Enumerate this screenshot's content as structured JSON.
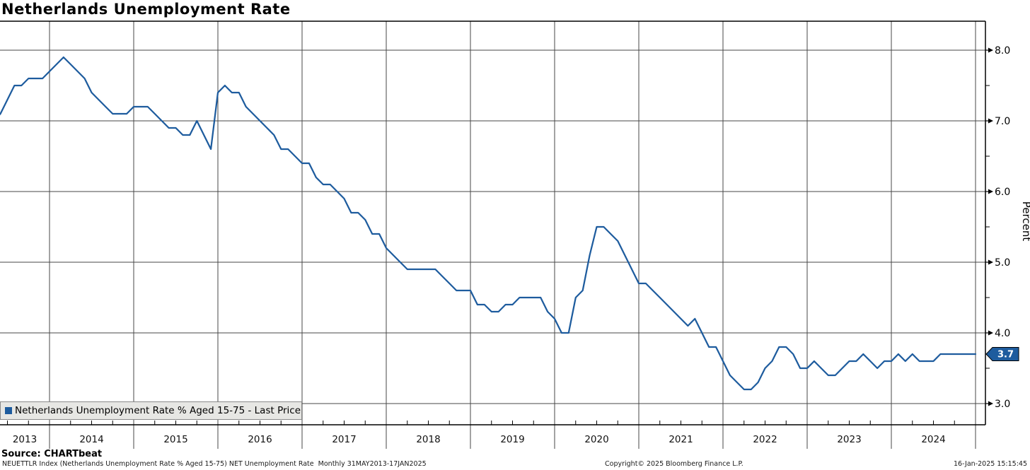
{
  "header": {
    "title": "Netherlands Unemployment Rate"
  },
  "legend": {
    "label": "Netherlands Unemployment Rate % Aged 15-75 - Last Price"
  },
  "footer": {
    "source": "Source: CHARTbeat",
    "description": "NEUETTLR Index (Netherlands Unemployment Rate % Aged 15-75) NET Unemployment Rate  Monthly 31MAY2013-17JAN2025",
    "copyright": "Copyright© 2025 Bloomberg Finance L.P.",
    "timestamp": "16-Jan-2025 15:15:45"
  },
  "colors": {
    "line": "#1e5c9e",
    "badge_fill": "#1e5c9e",
    "badge_text": "#ffffff",
    "grid": "#474747",
    "axis": "#000000",
    "legend_bg": "#e7e7e4"
  },
  "chart_data": {
    "type": "line",
    "title": "Netherlands Unemployment Rate",
    "ylabel": "Percent",
    "xlabel": "",
    "grid": true,
    "legend_position": "bottom-left",
    "ylim": [
      2.7,
      8.41
    ],
    "y_major_ticks": [
      8.0,
      7.0,
      6.0,
      5.0,
      4.0,
      3.0
    ],
    "y_minor_ticks": [
      7.5,
      6.5,
      5.5,
      4.5,
      3.5
    ],
    "x_year_labels": [
      "2013",
      "2014",
      "2015",
      "2016",
      "2017",
      "2018",
      "2019",
      "2020",
      "2021",
      "2022",
      "2023",
      "2024"
    ],
    "frequency": "monthly",
    "x_start": "2013-05",
    "x_end": "2025-01",
    "last_price": "3.7",
    "series": [
      {
        "name": "Netherlands Unemployment Rate % Aged 15-75 - Last Price",
        "values_by_year": {
          "2013": [
            7.0,
            7.1,
            7.3,
            7.5,
            7.5,
            7.6,
            7.6,
            7.6
          ],
          "2014": [
            7.7,
            7.8,
            7.9,
            7.8,
            7.7,
            7.6,
            7.4,
            7.3,
            7.2,
            7.1,
            7.1,
            7.1
          ],
          "2015": [
            7.2,
            7.2,
            7.2,
            7.1,
            7.0,
            6.9,
            6.9,
            6.8,
            6.8,
            7.0,
            6.8,
            6.6
          ],
          "2016": [
            7.4,
            7.5,
            7.4,
            7.4,
            7.2,
            7.1,
            7.0,
            6.9,
            6.8,
            6.6,
            6.6,
            6.5
          ],
          "2017": [
            6.4,
            6.4,
            6.2,
            6.1,
            6.1,
            6.0,
            5.9,
            5.7,
            5.7,
            5.6,
            5.4,
            5.4
          ],
          "2018": [
            5.2,
            5.1,
            5.0,
            4.9,
            4.9,
            4.9,
            4.9,
            4.9,
            4.8,
            4.7,
            4.6,
            4.6
          ],
          "2019": [
            4.6,
            4.4,
            4.4,
            4.3,
            4.3,
            4.4,
            4.4,
            4.5,
            4.5,
            4.5,
            4.5,
            4.3
          ],
          "2020": [
            4.2,
            4.0,
            4.0,
            4.5,
            4.6,
            5.1,
            5.5,
            5.5,
            5.4,
            5.3,
            5.1,
            4.9
          ],
          "2021": [
            4.7,
            4.7,
            4.6,
            4.5,
            4.4,
            4.3,
            4.2,
            4.1,
            4.2,
            4.0,
            3.8,
            3.8
          ],
          "2022": [
            3.6,
            3.4,
            3.3,
            3.2,
            3.2,
            3.3,
            3.5,
            3.6,
            3.8,
            3.8,
            3.7,
            3.5
          ],
          "2023": [
            3.5,
            3.6,
            3.5,
            3.4,
            3.4,
            3.5,
            3.6,
            3.6,
            3.7,
            3.6,
            3.5,
            3.6
          ],
          "2024": [
            3.6,
            3.7,
            3.6,
            3.7,
            3.6,
            3.6,
            3.6,
            3.7,
            3.7,
            3.7,
            3.7,
            3.7
          ],
          "2025": [
            3.7
          ]
        }
      }
    ]
  }
}
